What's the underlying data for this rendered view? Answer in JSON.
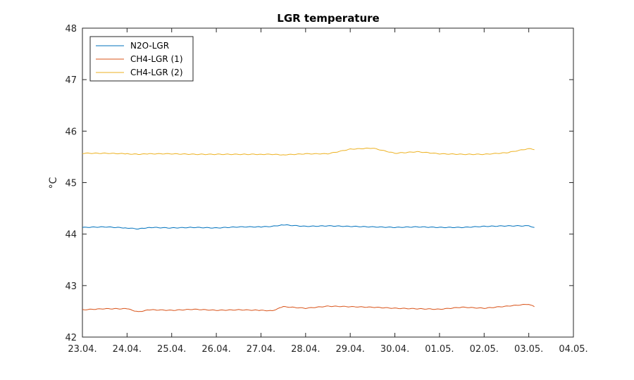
{
  "chart_data": {
    "type": "line",
    "title": "LGR temperature",
    "xlabel": "",
    "ylabel": "°C",
    "ylim": [
      42,
      48
    ],
    "yticks": [
      42,
      43,
      44,
      45,
      46,
      47,
      48
    ],
    "xlim": [
      "2000-04-23",
      "2000-05-04"
    ],
    "xticks": [
      "23.04.",
      "24.04.",
      "25.04.",
      "26.04.",
      "27.04.",
      "28.04.",
      "29.04.",
      "30.04.",
      "01.05.",
      "02.05.",
      "03.05.",
      "04.05."
    ],
    "grid": false,
    "legend_position": "top-left",
    "x": [
      "2000-04-23 00:00",
      "2000-04-23 12:00",
      "2000-04-24 00:00",
      "2000-04-24 06:00",
      "2000-04-24 12:00",
      "2000-04-25 00:00",
      "2000-04-25 12:00",
      "2000-04-26 00:00",
      "2000-04-26 12:00",
      "2000-04-27 00:00",
      "2000-04-27 06:00",
      "2000-04-27 12:00",
      "2000-04-28 00:00",
      "2000-04-28 12:00",
      "2000-04-29 00:00",
      "2000-04-29 12:00",
      "2000-04-30 00:00",
      "2000-04-30 12:00",
      "2000-05-01 00:00",
      "2000-05-01 12:00",
      "2000-05-02 00:00",
      "2000-05-02 12:00",
      "2000-05-03 00:00",
      "2000-05-03 03:00"
    ],
    "series": [
      {
        "name": "N2O-LGR",
        "color": "#0072BD",
        "values": [
          44.13,
          44.14,
          44.12,
          44.1,
          44.13,
          44.12,
          44.13,
          44.12,
          44.14,
          44.14,
          44.15,
          44.18,
          44.15,
          44.16,
          44.15,
          44.14,
          44.13,
          44.14,
          44.13,
          44.13,
          44.15,
          44.16,
          44.16,
          44.13
        ]
      },
      {
        "name": "CH4-LGR (1)",
        "color": "#D95319",
        "values": [
          42.53,
          42.55,
          42.55,
          42.49,
          42.53,
          42.52,
          42.54,
          42.52,
          42.53,
          42.52,
          42.51,
          42.59,
          42.56,
          42.6,
          42.59,
          42.58,
          42.56,
          42.55,
          42.54,
          42.58,
          42.56,
          42.6,
          42.64,
          42.59
        ]
      },
      {
        "name": "CH4-LGR (2)",
        "color": "#EDB120",
        "values": [
          45.57,
          45.57,
          45.56,
          45.55,
          45.56,
          45.56,
          45.55,
          45.55,
          45.55,
          45.55,
          45.55,
          45.54,
          45.56,
          45.56,
          45.65,
          45.67,
          45.57,
          45.6,
          45.56,
          45.55,
          45.55,
          45.58,
          45.66,
          45.64
        ]
      }
    ]
  }
}
